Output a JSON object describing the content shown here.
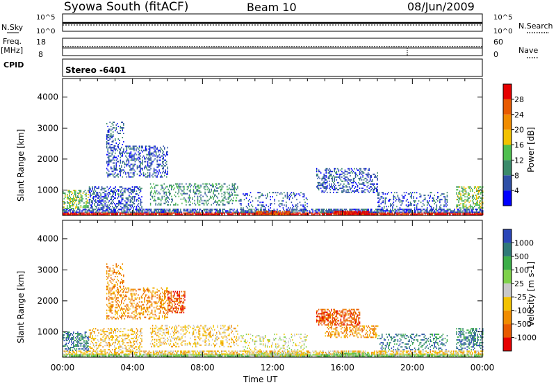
{
  "header": {
    "station": "Syowa South (fitACF)",
    "beam": "Beam 10",
    "date": "08/Jun/2009"
  },
  "noise_panel": {
    "left_label": "N.Sky",
    "left_ticks": [
      "10^5",
      "10^0"
    ],
    "right_label": "N.Search",
    "right_ticks": [
      "10^5",
      "10^0"
    ]
  },
  "freq_panel": {
    "left_label_1": "Freq.",
    "left_label_2": "[MHz]",
    "left_ticks": [
      "18",
      "8"
    ],
    "right_label": "Nave",
    "right_ticks": [
      "60",
      "0"
    ]
  },
  "cpid": {
    "label": "CPID",
    "value": "Stereo -6401"
  },
  "chart_data": [
    {
      "type": "heatmap",
      "name": "power",
      "ylabel": "Slant Range [km]",
      "xlabel": "",
      "xlim": [
        0,
        24
      ],
      "ylim": [
        180,
        4600
      ],
      "y_ticks": [
        "1000",
        "2000",
        "3000",
        "4000"
      ],
      "x_ticks": [
        "00:00",
        "04:00",
        "08:00",
        "12:00",
        "16:00",
        "20:00",
        "00:00"
      ],
      "colorbar": {
        "label": "Power [dB]",
        "ticks": [
          "4",
          "8",
          "12",
          "16",
          "20",
          "24",
          "28"
        ],
        "colors": [
          "#0000ff",
          "#2e4fa6",
          "#3a8a6a",
          "#4fbf4f",
          "#f2c200",
          "#f08c00",
          "#e85a00",
          "#e60000"
        ]
      },
      "patches": [
        {
          "t": [
            0.0,
            24.0
          ],
          "r": [
            190,
            260
          ],
          "level": 7,
          "density": 0.9
        },
        {
          "t": [
            0.0,
            24.0
          ],
          "r": [
            260,
            380
          ],
          "level": 1,
          "density": 0.7
        },
        {
          "t": [
            0.0,
            1.5
          ],
          "r": [
            380,
            1000
          ],
          "level": 3,
          "density": 0.45
        },
        {
          "t": [
            1.5,
            4.5
          ],
          "r": [
            400,
            1100
          ],
          "level": 1,
          "density": 0.45
        },
        {
          "t": [
            2.5,
            6.0
          ],
          "r": [
            1400,
            2400
          ],
          "level": 1,
          "density": 0.35
        },
        {
          "t": [
            2.5,
            3.5
          ],
          "r": [
            2400,
            3200
          ],
          "level": 1,
          "density": 0.3
        },
        {
          "t": [
            5.0,
            10.0
          ],
          "r": [
            500,
            1200
          ],
          "level": 2,
          "density": 0.3
        },
        {
          "t": [
            10.0,
            14.0
          ],
          "r": [
            400,
            900
          ],
          "level": 1,
          "density": 0.2
        },
        {
          "t": [
            11.0,
            13.0
          ],
          "r": [
            190,
            300
          ],
          "level": 6,
          "density": 0.8
        },
        {
          "t": [
            14.5,
            18.0
          ],
          "r": [
            900,
            1700
          ],
          "level": 1,
          "density": 0.35
        },
        {
          "t": [
            15.5,
            17.5
          ],
          "r": [
            190,
            300
          ],
          "level": 7,
          "density": 0.9
        },
        {
          "t": [
            18.0,
            22.0
          ],
          "r": [
            400,
            900
          ],
          "level": 1,
          "density": 0.25
        },
        {
          "t": [
            22.5,
            24.0
          ],
          "r": [
            400,
            1100
          ],
          "level": 3,
          "density": 0.45
        }
      ]
    },
    {
      "type": "heatmap",
      "name": "velocity",
      "ylabel": "Slant Range [km]",
      "xlabel": "Time UT",
      "xlim": [
        0,
        24
      ],
      "ylim": [
        180,
        4600
      ],
      "y_ticks": [
        "1000",
        "2000",
        "3000",
        "4000"
      ],
      "x_ticks": [
        "00:00",
        "04:00",
        "08:00",
        "12:00",
        "16:00",
        "20:00",
        "00:00"
      ],
      "colorbar": {
        "label": "Velocity [m s-1]",
        "ticks": [
          "1000",
          "500",
          "100",
          "25",
          "-25",
          "-100",
          "-500",
          "-1000"
        ],
        "colors": [
          "#2a46b8",
          "#2f7a78",
          "#3cae48",
          "#7ed14a",
          "#c8c8c8",
          "#f2c200",
          "#f08c00",
          "#e85a00",
          "#e60000"
        ]
      },
      "patches": [
        {
          "t": [
            0.0,
            24.0
          ],
          "r": [
            190,
            260
          ],
          "level": 3,
          "density": 0.9
        },
        {
          "t": [
            0.0,
            24.0
          ],
          "r": [
            260,
            380
          ],
          "level": 5,
          "density": 0.6
        },
        {
          "t": [
            0.0,
            1.5
          ],
          "r": [
            380,
            1000
          ],
          "level": 1,
          "density": 0.45
        },
        {
          "t": [
            1.5,
            4.5
          ],
          "r": [
            400,
            1100
          ],
          "level": 5,
          "density": 0.4
        },
        {
          "t": [
            2.5,
            6.0
          ],
          "r": [
            1400,
            2400
          ],
          "level": 6,
          "density": 0.35
        },
        {
          "t": [
            2.5,
            3.5
          ],
          "r": [
            2400,
            3200
          ],
          "level": 6,
          "density": 0.3
        },
        {
          "t": [
            6.0,
            7.0
          ],
          "r": [
            1600,
            2300
          ],
          "level": 7,
          "density": 0.5
        },
        {
          "t": [
            5.0,
            10.0
          ],
          "r": [
            500,
            1200
          ],
          "level": 5,
          "density": 0.3
        },
        {
          "t": [
            10.0,
            14.0
          ],
          "r": [
            400,
            900
          ],
          "level": 4,
          "density": 0.2
        },
        {
          "t": [
            11.0,
            14.0
          ],
          "r": [
            190,
            300
          ],
          "level": 4,
          "density": 0.8
        },
        {
          "t": [
            14.5,
            17.0
          ],
          "r": [
            1200,
            1700
          ],
          "level": 7,
          "density": 0.55
        },
        {
          "t": [
            15.0,
            18.0
          ],
          "r": [
            800,
            1200
          ],
          "level": 6,
          "density": 0.4
        },
        {
          "t": [
            15.5,
            17.5
          ],
          "r": [
            190,
            300
          ],
          "level": 3,
          "density": 0.9
        },
        {
          "t": [
            18.0,
            22.0
          ],
          "r": [
            400,
            900
          ],
          "level": 1,
          "density": 0.25
        },
        {
          "t": [
            22.5,
            24.0
          ],
          "r": [
            400,
            1100
          ],
          "level": 1,
          "density": 0.45
        }
      ]
    }
  ]
}
